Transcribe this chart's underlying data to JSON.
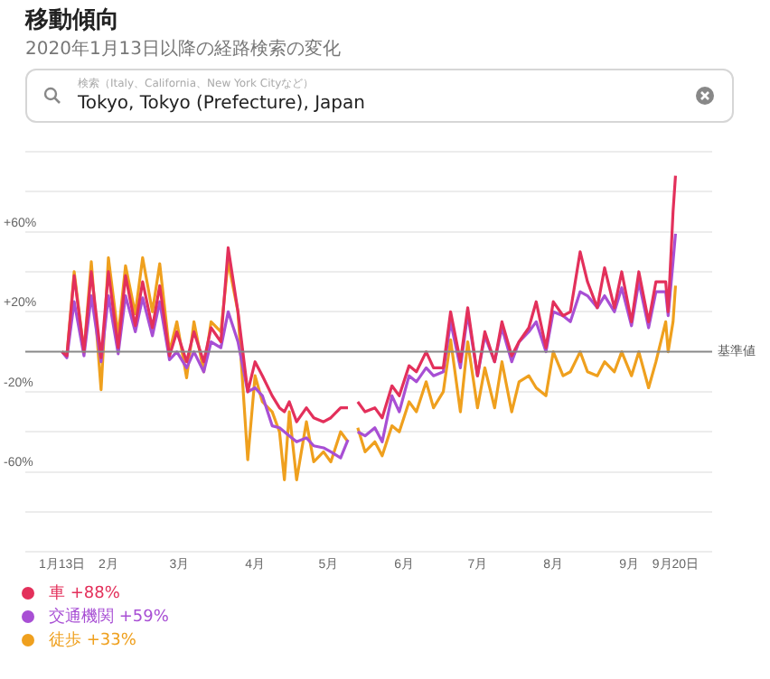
{
  "chart_data": {
    "type": "line",
    "title": "移動傾向",
    "subtitle": "2020年1月13日以降の経路検索の変化",
    "annotations": [
      "検索（Italy、California、New York Cityなど）",
      "Tokyo, Tokyo (Prefecture), Japan"
    ],
    "x": [
      "2020-01-13",
      "2020-01-15",
      "2020-01-18",
      "2020-01-22",
      "2020-01-25",
      "2020-01-29",
      "2020-02-01",
      "2020-02-05",
      "2020-02-08",
      "2020-02-12",
      "2020-02-15",
      "2020-02-19",
      "2020-02-22",
      "2020-02-26",
      "2020-02-29",
      "2020-03-04",
      "2020-03-07",
      "2020-03-11",
      "2020-03-14",
      "2020-03-18",
      "2020-03-21",
      "2020-03-25",
      "2020-03-29",
      "2020-04-01",
      "2020-04-04",
      "2020-04-08",
      "2020-04-11",
      "2020-04-13",
      "2020-04-15",
      "2020-04-18",
      "2020-04-22",
      "2020-04-25",
      "2020-04-29",
      "2020-05-02",
      "2020-05-06",
      "2020-05-09",
      "2020-05-12",
      "2020-05-13",
      "2020-05-16",
      "2020-05-20",
      "2020-05-23",
      "2020-05-27",
      "2020-05-30",
      "2020-06-03",
      "2020-06-06",
      "2020-06-10",
      "2020-06-13",
      "2020-06-17",
      "2020-06-20",
      "2020-06-24",
      "2020-06-27",
      "2020-07-01",
      "2020-07-04",
      "2020-07-08",
      "2020-07-11",
      "2020-07-15",
      "2020-07-18",
      "2020-07-22",
      "2020-07-25",
      "2020-07-29",
      "2020-08-01",
      "2020-08-05",
      "2020-08-08",
      "2020-08-12",
      "2020-08-15",
      "2020-08-19",
      "2020-08-22",
      "2020-08-26",
      "2020-08-29",
      "2020-09-02",
      "2020-09-05",
      "2020-09-09",
      "2020-09-12",
      "2020-09-16",
      "2020-09-17",
      "2020-09-19",
      "2020-09-20"
    ],
    "series": [
      {
        "name": "車 +88%",
        "color": "#e3305b",
        "values": [
          0,
          -2,
          38,
          0,
          40,
          -3,
          40,
          2,
          38,
          13,
          35,
          12,
          33,
          -2,
          10,
          -5,
          10,
          -5,
          12,
          5,
          52,
          20,
          -20,
          -5,
          -12,
          -22,
          -28,
          -30,
          -25,
          -35,
          -28,
          -33,
          -35,
          -33,
          -28,
          -28,
          null,
          -25,
          -30,
          -28,
          -33,
          -17,
          -22,
          -7,
          -10,
          0,
          -8,
          -8,
          20,
          -5,
          22,
          -12,
          10,
          -5,
          15,
          -2,
          5,
          12,
          25,
          2,
          25,
          18,
          20,
          50,
          35,
          22,
          42,
          22,
          40,
          15,
          40,
          15,
          35,
          35,
          20,
          70,
          88
        ]
      },
      {
        "name": "交通機関 +59%",
        "color": "#a84fd4",
        "values": [
          0,
          -3,
          25,
          -2,
          28,
          -5,
          28,
          -1,
          28,
          10,
          27,
          8,
          25,
          -4,
          0,
          -8,
          0,
          -10,
          5,
          2,
          20,
          5,
          -20,
          -18,
          -22,
          -37,
          -38,
          -40,
          -42,
          -45,
          -43,
          -47,
          -48,
          -50,
          -53,
          -44,
          null,
          -40,
          -42,
          -38,
          -45,
          -22,
          -30,
          -12,
          -15,
          -8,
          -12,
          -10,
          15,
          -8,
          19,
          -12,
          8,
          -5,
          12,
          -5,
          5,
          10,
          15,
          0,
          20,
          18,
          15,
          30,
          28,
          22,
          28,
          20,
          32,
          13,
          35,
          12,
          30,
          30,
          18,
          45,
          59
        ]
      },
      {
        "name": "徒歩 +33%",
        "color": "#efa01e",
        "values": [
          0,
          -2,
          40,
          0,
          45,
          -19,
          47,
          8,
          43,
          19,
          47,
          20,
          44,
          0,
          15,
          -13,
          15,
          -10,
          15,
          10,
          45,
          20,
          -54,
          -12,
          -25,
          -30,
          -40,
          -64,
          -30,
          -64,
          -35,
          -55,
          -50,
          -55,
          -40,
          -45,
          null,
          -38,
          -50,
          -45,
          -52,
          -37,
          -40,
          -25,
          -30,
          -15,
          -28,
          -20,
          6,
          -30,
          5,
          -28,
          -8,
          -28,
          -5,
          -30,
          -15,
          -12,
          -18,
          -22,
          0,
          -12,
          -10,
          0,
          -10,
          -12,
          -5,
          -10,
          0,
          -12,
          0,
          -18,
          -5,
          15,
          0,
          15,
          33
        ]
      }
    ],
    "xlim": [
      "2019-12-29",
      "2020-10-05"
    ],
    "xticks": [
      {
        "value": "2020-01-13",
        "label": "1月13日"
      },
      {
        "value": "2020-02-01",
        "label": "2月"
      },
      {
        "value": "2020-03-01",
        "label": "3月"
      },
      {
        "value": "2020-04-01",
        "label": "4月"
      },
      {
        "value": "2020-05-01",
        "label": "5月"
      },
      {
        "value": "2020-06-01",
        "label": "6月"
      },
      {
        "value": "2020-07-01",
        "label": "7月"
      },
      {
        "value": "2020-08-01",
        "label": "8月"
      },
      {
        "value": "2020-09-01",
        "label": "9月"
      },
      {
        "value": "2020-09-20",
        "label": "9月20日"
      }
    ],
    "ylim": [
      -100,
      100
    ],
    "yticks": [
      {
        "value": 100,
        "label": null
      },
      {
        "value": 80,
        "label": null
      },
      {
        "value": 60,
        "label": "+60%"
      },
      {
        "value": 40,
        "label": null
      },
      {
        "value": 20,
        "label": "+20%"
      },
      {
        "value": -20,
        "label": "-20%"
      },
      {
        "value": -40,
        "label": null
      },
      {
        "value": -60,
        "label": "-60%"
      },
      {
        "value": -80,
        "label": null
      },
      {
        "value": -100,
        "label": null
      }
    ],
    "ref_lines": [
      {
        "axis": "y",
        "value": 0,
        "label": "基準値",
        "color": "#888888"
      }
    ],
    "grid": "y",
    "legend": "bottom left",
    "marker": "none",
    "line_style": "solid"
  }
}
